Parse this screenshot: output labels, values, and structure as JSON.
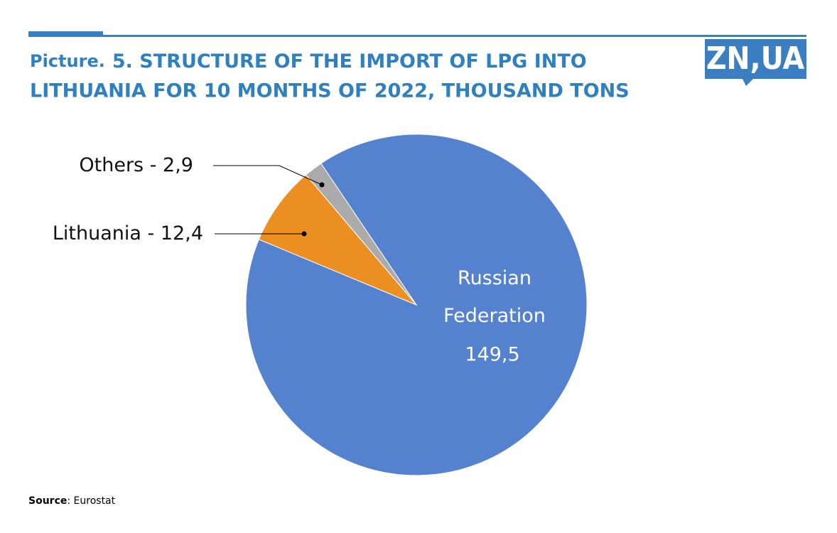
{
  "chart_data": {
    "type": "pie",
    "title_prefix": "Picture.",
    "title_lines": [
      "5. STRUCTURE OF THE IMPORT OF LPG INTO",
      "LITHUANIA FOR 10 MONTHS OF 2022, THOUSAND TONS"
    ],
    "categories": [
      "Russian Federation",
      "Lithuania",
      "Others"
    ],
    "values": [
      149.5,
      12.4,
      2.9
    ],
    "value_labels": [
      "149,5",
      "12,4",
      "2,9"
    ],
    "label_separator": " - ",
    "colors": [
      "#5582cf",
      "#ec8f22",
      "#ababab"
    ],
    "logo": "ZN,UA",
    "source_label": "Source",
    "source_text": ": Eurostat"
  }
}
